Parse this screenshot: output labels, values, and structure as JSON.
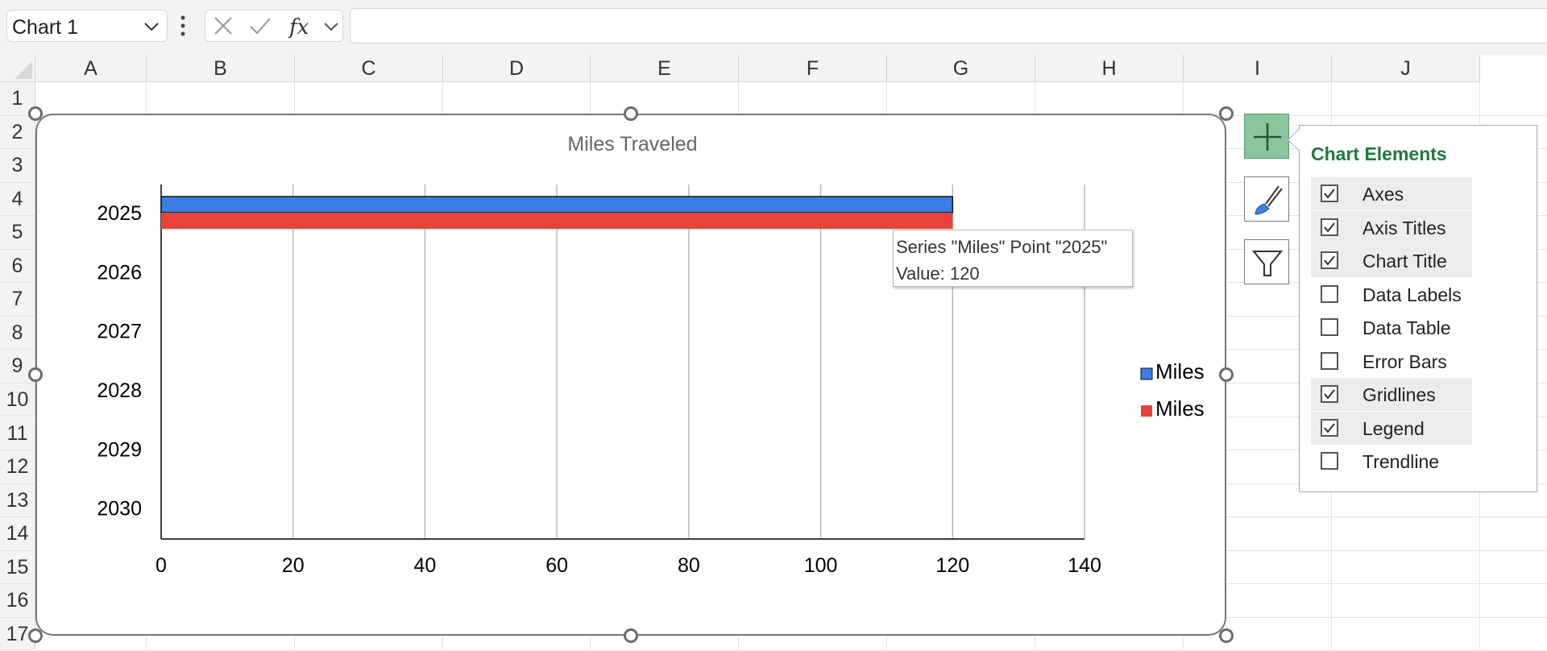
{
  "name_box": {
    "value": "Chart 1"
  },
  "formula_bar": {
    "fx_label": "fx",
    "value": ""
  },
  "columns": [
    "A",
    "B",
    "C",
    "D",
    "E",
    "F",
    "G",
    "H",
    "I",
    "J"
  ],
  "rows": [
    "1",
    "2",
    "3",
    "4",
    "5",
    "6",
    "7",
    "8",
    "9",
    "10",
    "11",
    "12",
    "13",
    "14",
    "15",
    "16",
    "17"
  ],
  "chart_data": {
    "type": "bar",
    "orientation": "horizontal",
    "title": "Miles Traveled",
    "categories": [
      "2025",
      "2026",
      "2027",
      "2028",
      "2029",
      "2030"
    ],
    "series": [
      {
        "name": "Miles",
        "color": "#3a7ee6",
        "values": [
          120,
          null,
          null,
          null,
          null,
          null
        ]
      },
      {
        "name": "Miles",
        "color": "#e8433a",
        "values": [
          120,
          null,
          null,
          null,
          null,
          null
        ]
      }
    ],
    "xlim": [
      0,
      140
    ],
    "x_ticks": [
      "0",
      "20",
      "40",
      "60",
      "80",
      "100",
      "120",
      "140"
    ],
    "gridlines": true,
    "legend_position": "right"
  },
  "tooltip": {
    "line1": "Series \"Miles\" Point \"2025\"",
    "line2": "Value: 120"
  },
  "side_buttons": {
    "add_icon": "plus-icon",
    "style_icon": "paintbrush-icon",
    "filter_icon": "funnel-icon"
  },
  "chart_elements": {
    "title": "Chart Elements",
    "items": [
      {
        "label": "Axes",
        "checked": true
      },
      {
        "label": "Axis Titles",
        "checked": true
      },
      {
        "label": "Chart Title",
        "checked": true
      },
      {
        "label": "Data Labels",
        "checked": false
      },
      {
        "label": "Data Table",
        "checked": false
      },
      {
        "label": "Error Bars",
        "checked": false
      },
      {
        "label": "Gridlines",
        "checked": true
      },
      {
        "label": "Legend",
        "checked": true
      },
      {
        "label": "Trendline",
        "checked": false
      }
    ]
  }
}
